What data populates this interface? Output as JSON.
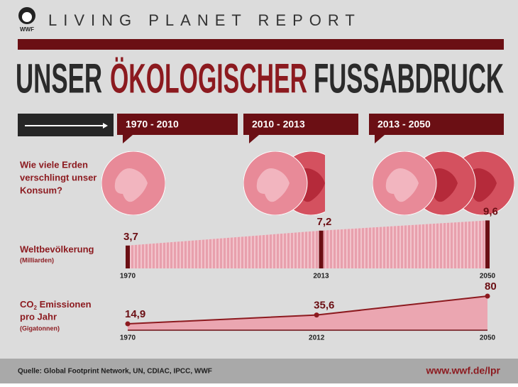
{
  "header": {
    "logo": "WWF",
    "brand": "LIVING PLANET REPORT"
  },
  "title": {
    "part1": "UNSER",
    "highlight": "ÖKOLOGISCHER",
    "part2": "FUSSABDRUCK"
  },
  "periods": [
    "1970 - 2010",
    "2010 - 2013",
    "2013 - 2050"
  ],
  "earths": {
    "label_lines": [
      "Wie viele Erden",
      "verschlingt unser",
      "Konsum?"
    ],
    "values": [
      1,
      1.5,
      3
    ]
  },
  "population": {
    "label": "Weltbevölkerung",
    "unit": "(Milliarden)",
    "x": [
      1970,
      2013,
      2050
    ],
    "values": [
      3.7,
      7.2,
      9.6
    ],
    "value_labels": [
      "3,7",
      "7,2",
      "9,6"
    ]
  },
  "emissions": {
    "label_co": "CO",
    "label_sub": "2",
    "label_rest": " Emissionen",
    "label_line2": "pro Jahr",
    "unit": "(Gigatonnen)",
    "x": [
      1970,
      2012,
      2050
    ],
    "values": [
      14.9,
      35.6,
      80
    ],
    "value_labels": [
      "14,9",
      "35,6",
      "80"
    ]
  },
  "footer": {
    "source": "Quelle: Global Footprint Network, UN, CDIAC, IPCC, WWF",
    "url": "www.wwf.de/lpr"
  }
}
